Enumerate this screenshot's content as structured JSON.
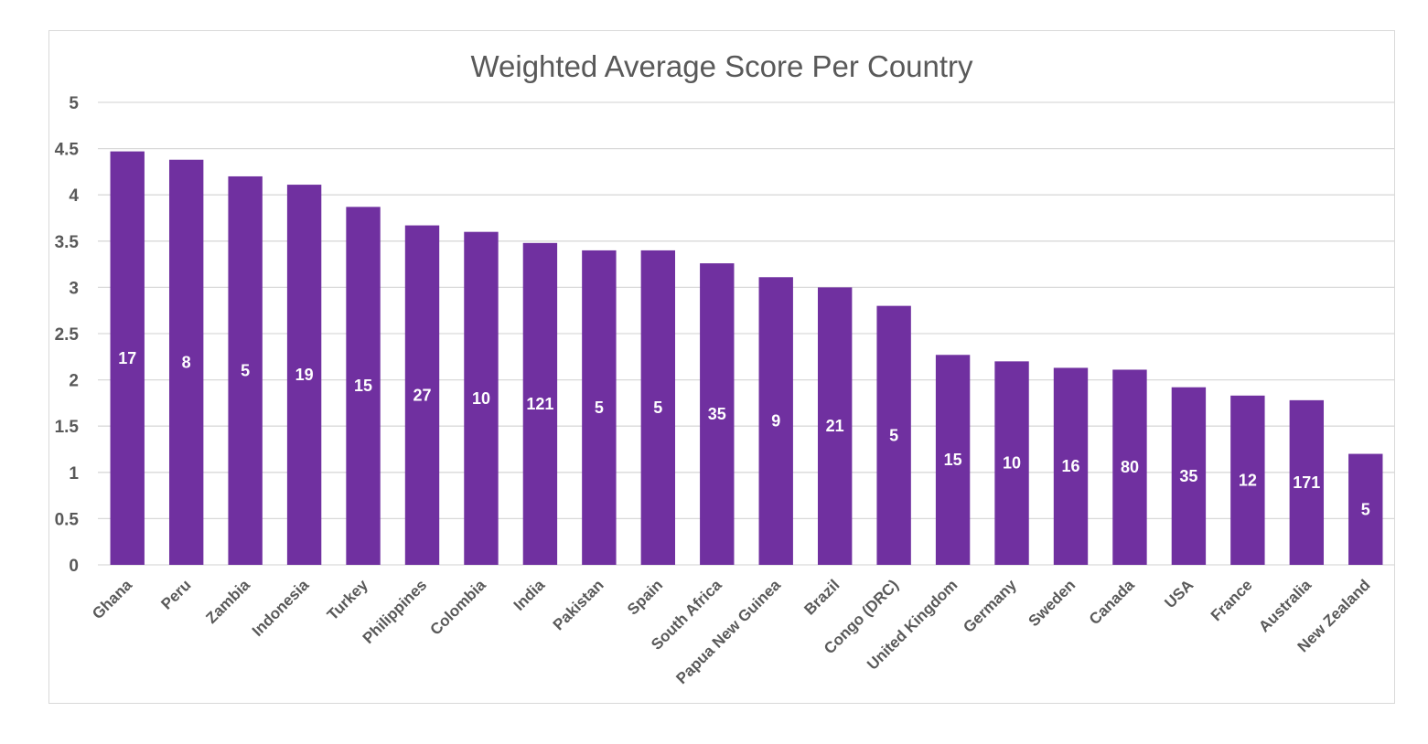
{
  "chart_data": {
    "type": "bar",
    "title": "Weighted Average Score Per Country",
    "xlabel": "",
    "ylabel": "",
    "ylim": [
      0,
      5
    ],
    "yticks": [
      "0",
      "0.5",
      "1",
      "1.5",
      "2",
      "2.5",
      "3",
      "3.5",
      "4",
      "4.5",
      "5"
    ],
    "grid": true,
    "legend": "none",
    "categories": [
      "Ghana",
      "Peru",
      "Zambia",
      "Indonesia",
      "Turkey",
      "Philippines",
      "Colombia",
      "India",
      "Pakistan",
      "Spain",
      "South Africa",
      "Papua New Guinea",
      "Brazil",
      "Congo (DRC)",
      "United Kingdom",
      "Germany",
      "Sweden",
      "Canada",
      "USA",
      "France",
      "Australia",
      "New Zealand"
    ],
    "values": [
      4.47,
      4.38,
      4.2,
      4.11,
      3.87,
      3.67,
      3.6,
      3.48,
      3.4,
      3.4,
      3.26,
      3.11,
      3.0,
      2.8,
      2.27,
      2.2,
      2.13,
      2.11,
      1.92,
      1.83,
      1.78,
      1.2
    ],
    "data_labels": [
      "17",
      "8",
      "5",
      "19",
      "15",
      "27",
      "10",
      "121",
      "5",
      "5",
      "35",
      "9",
      "21",
      "5",
      "15",
      "10",
      "16",
      "80",
      "35",
      "12",
      "171",
      "5"
    ],
    "colors": {
      "bar": "#7030a0",
      "grid": "#d9d9d9",
      "text": "#595959",
      "label": "#ffffff"
    }
  }
}
